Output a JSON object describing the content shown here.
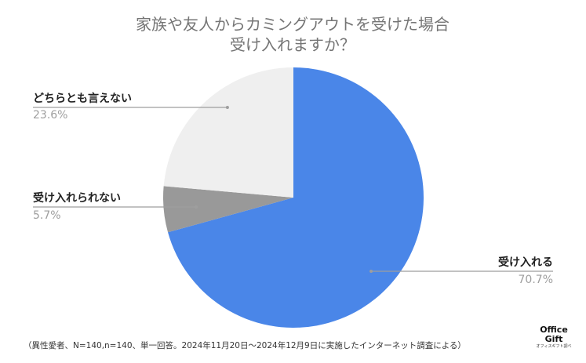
{
  "chart_data": {
    "type": "pie",
    "title_lines": [
      "家族や友人からカミングアウトを受けた場合",
      "受け入れますか？"
    ],
    "slices": [
      {
        "label": "受け入れる",
        "value": 70.7,
        "value_text": "70.7%",
        "color": "#4a86e8"
      },
      {
        "label": "受け入れられない",
        "value": 5.7,
        "value_text": "5.7%",
        "color": "#999999"
      },
      {
        "label": "どちらとも言えない",
        "value": 23.6,
        "value_text": "23.6%",
        "color": "#efefef"
      }
    ]
  },
  "footnote": "（異性愛者、N=140,n=140、単一回答。2024年11月20日～2024年12月9日に実施したインターネット調査による）",
  "logo": {
    "line1": "Office",
    "line2": "Gift",
    "tagline": "オフィスギフト調べ"
  }
}
